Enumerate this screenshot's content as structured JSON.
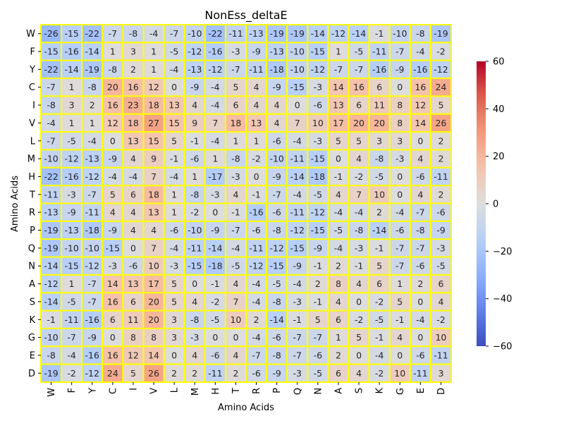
{
  "chart_data": {
    "type": "heatmap",
    "title": "NonEss_deltaE",
    "xlabel": "Amino Acids",
    "ylabel": "Amino Acids",
    "x_categories": [
      "W",
      "F",
      "Y",
      "C",
      "I",
      "V",
      "L",
      "M",
      "H",
      "T",
      "R",
      "P",
      "Q",
      "N",
      "A",
      "S",
      "K",
      "G",
      "E",
      "D"
    ],
    "y_categories": [
      "W",
      "F",
      "Y",
      "C",
      "I",
      "V",
      "L",
      "M",
      "H",
      "T",
      "R",
      "P",
      "Q",
      "N",
      "A",
      "S",
      "K",
      "G",
      "E",
      "D"
    ],
    "values": [
      [
        -26,
        -15,
        -22,
        -7,
        -8,
        -4,
        -7,
        -10,
        -22,
        -11,
        -13,
        -19,
        -19,
        -14,
        -12,
        -14,
        -1,
        -10,
        -8,
        -19
      ],
      [
        -15,
        -16,
        -14,
        1,
        3,
        1,
        -5,
        -12,
        -16,
        -3,
        -9,
        -13,
        -10,
        -15,
        1,
        -5,
        -11,
        -7,
        -4,
        -2
      ],
      [
        -22,
        -14,
        -19,
        -8,
        2,
        1,
        -4,
        -13,
        -12,
        -7,
        -11,
        -18,
        -10,
        -12,
        -7,
        -7,
        -16,
        -9,
        -16,
        -12
      ],
      [
        -7,
        1,
        -8,
        20,
        16,
        12,
        0,
        -9,
        -4,
        5,
        4,
        -9,
        -15,
        -3,
        14,
        16,
        6,
        0,
        16,
        24
      ],
      [
        -8,
        3,
        2,
        16,
        23,
        18,
        13,
        4,
        -4,
        6,
        4,
        4,
        0,
        -6,
        13,
        6,
        11,
        8,
        12,
        5
      ],
      [
        -4,
        1,
        1,
        12,
        18,
        27,
        15,
        9,
        7,
        18,
        13,
        4,
        7,
        10,
        17,
        20,
        20,
        8,
        14,
        26
      ],
      [
        -7,
        -5,
        -4,
        0,
        13,
        15,
        5,
        -1,
        -4,
        1,
        1,
        -6,
        -4,
        -3,
        5,
        5,
        3,
        3,
        0,
        2
      ],
      [
        -10,
        -12,
        -13,
        -9,
        4,
        9,
        -1,
        -6,
        1,
        -8,
        -2,
        -10,
        -11,
        -15,
        0,
        4,
        -8,
        -3,
        4,
        2
      ],
      [
        -22,
        -16,
        -12,
        -4,
        -4,
        7,
        -4,
        1,
        -17,
        -3,
        0,
        -9,
        -14,
        -18,
        -1,
        -2,
        -5,
        0,
        -6,
        -11
      ],
      [
        -11,
        -3,
        -7,
        5,
        6,
        18,
        1,
        -8,
        -3,
        4,
        -1,
        -7,
        -4,
        -5,
        4,
        7,
        10,
        0,
        4,
        2
      ],
      [
        -13,
        -9,
        -11,
        4,
        4,
        13,
        1,
        -2,
        0,
        -1,
        -16,
        -6,
        -11,
        -12,
        -4,
        -4,
        2,
        -4,
        -7,
        -6
      ],
      [
        -19,
        -13,
        -18,
        -9,
        4,
        4,
        -6,
        -10,
        -9,
        -7,
        -6,
        -8,
        -12,
        -15,
        -5,
        -8,
        -14,
        -6,
        -8,
        -9
      ],
      [
        -19,
        -10,
        -10,
        -15,
        0,
        7,
        -4,
        -11,
        -14,
        -4,
        -11,
        -12,
        -15,
        -9,
        -4,
        -3,
        -1,
        -7,
        -7,
        -3
      ],
      [
        -14,
        -15,
        -12,
        -3,
        -6,
        10,
        -3,
        -15,
        -18,
        -5,
        -12,
        -15,
        -9,
        -1,
        2,
        -1,
        5,
        -7,
        -6,
        -5
      ],
      [
        -12,
        1,
        -7,
        14,
        13,
        17,
        5,
        0,
        -1,
        4,
        -4,
        -5,
        -4,
        2,
        8,
        4,
        6,
        1,
        2,
        6
      ],
      [
        -14,
        -5,
        -7,
        16,
        6,
        20,
        5,
        4,
        -2,
        7,
        -4,
        -8,
        -3,
        -1,
        4,
        0,
        -2,
        5,
        0,
        4
      ],
      [
        -1,
        -11,
        -16,
        6,
        11,
        20,
        3,
        -8,
        -5,
        10,
        2,
        -14,
        -1,
        5,
        6,
        -2,
        -5,
        -1,
        -4,
        -2
      ],
      [
        -10,
        -7,
        -9,
        0,
        8,
        8,
        3,
        -3,
        0,
        0,
        -4,
        -6,
        -7,
        -7,
        1,
        5,
        -1,
        4,
        0,
        10
      ],
      [
        -8,
        -4,
        -16,
        16,
        12,
        14,
        0,
        4,
        -6,
        4,
        -7,
        -8,
        -7,
        -6,
        2,
        0,
        -4,
        0,
        -6,
        -11
      ],
      [
        -19,
        -2,
        -12,
        24,
        5,
        26,
        2,
        2,
        -11,
        2,
        -6,
        -9,
        -3,
        -5,
        6,
        4,
        -2,
        10,
        -11,
        3
      ]
    ],
    "colormap": "coolwarm",
    "vmin": -60,
    "vmax": 60,
    "colorbar_ticks": [
      60,
      40,
      20,
      0,
      -20,
      -40,
      -60
    ],
    "cell_border_color": "#ffff00",
    "grid": false,
    "legend": "colorbar-right"
  }
}
